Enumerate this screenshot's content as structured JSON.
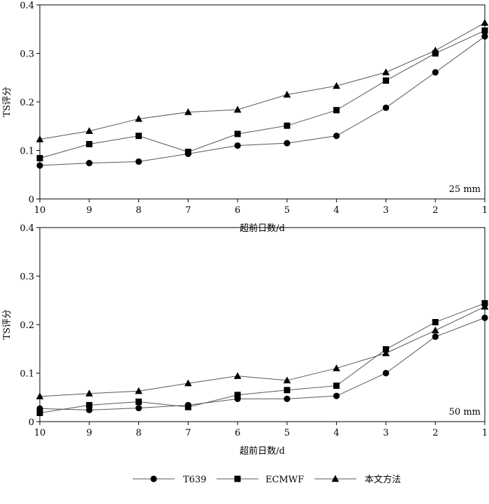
{
  "chart_data": [
    {
      "type": "line",
      "annotation": "25  mm",
      "ylabel": "TS评分",
      "xlabel": "超前日数/d",
      "categories": [
        "10",
        "9",
        "8",
        "7",
        "6",
        "5",
        "4",
        "3",
        "2",
        "1"
      ],
      "ylim": [
        0,
        0.4
      ],
      "yticks": [
        "0",
        "0.1",
        "0.2",
        "0.3",
        "0.4"
      ],
      "series": [
        {
          "name": "T639",
          "marker": "circle",
          "values": [
            0.069,
            0.074,
            0.077,
            0.093,
            0.11,
            0.115,
            0.13,
            0.188,
            0.261,
            0.335
          ]
        },
        {
          "name": "ECMWF",
          "marker": "square",
          "values": [
            0.084,
            0.113,
            0.13,
            0.097,
            0.134,
            0.151,
            0.183,
            0.244,
            0.3,
            0.347
          ]
        },
        {
          "name": "本文方法",
          "marker": "triangle",
          "values": [
            0.123,
            0.14,
            0.165,
            0.179,
            0.184,
            0.215,
            0.233,
            0.261,
            0.306,
            0.363
          ]
        }
      ]
    },
    {
      "type": "line",
      "annotation": "50  mm",
      "ylabel": "TS评分",
      "xlabel": "超前日数/d",
      "categories": [
        "10",
        "9",
        "8",
        "7",
        "6",
        "5",
        "4",
        "3",
        "2",
        "1"
      ],
      "ylim": [
        0,
        0.4
      ],
      "yticks": [
        "0",
        "0.1",
        "0.2",
        "0.3",
        "0.4"
      ],
      "series": [
        {
          "name": "T639",
          "marker": "circle",
          "values": [
            0.027,
            0.024,
            0.028,
            0.034,
            0.047,
            0.047,
            0.053,
            0.1,
            0.175,
            0.214
          ]
        },
        {
          "name": "ECMWF",
          "marker": "square",
          "values": [
            0.018,
            0.034,
            0.041,
            0.03,
            0.055,
            0.065,
            0.074,
            0.149,
            0.205,
            0.244
          ]
        },
        {
          "name": "本文方法",
          "marker": "triangle",
          "values": [
            0.052,
            0.058,
            0.063,
            0.079,
            0.094,
            0.085,
            0.11,
            0.141,
            0.188,
            0.237
          ]
        }
      ]
    }
  ],
  "legend": {
    "placement": "bottom",
    "items": [
      {
        "label": "T639",
        "marker": "circle"
      },
      {
        "label": "ECMWF",
        "marker": "square"
      },
      {
        "label": "本文方法",
        "marker": "triangle"
      }
    ]
  },
  "colors": {
    "line": "#555555",
    "marker": "#000000",
    "axis": "#000000"
  }
}
